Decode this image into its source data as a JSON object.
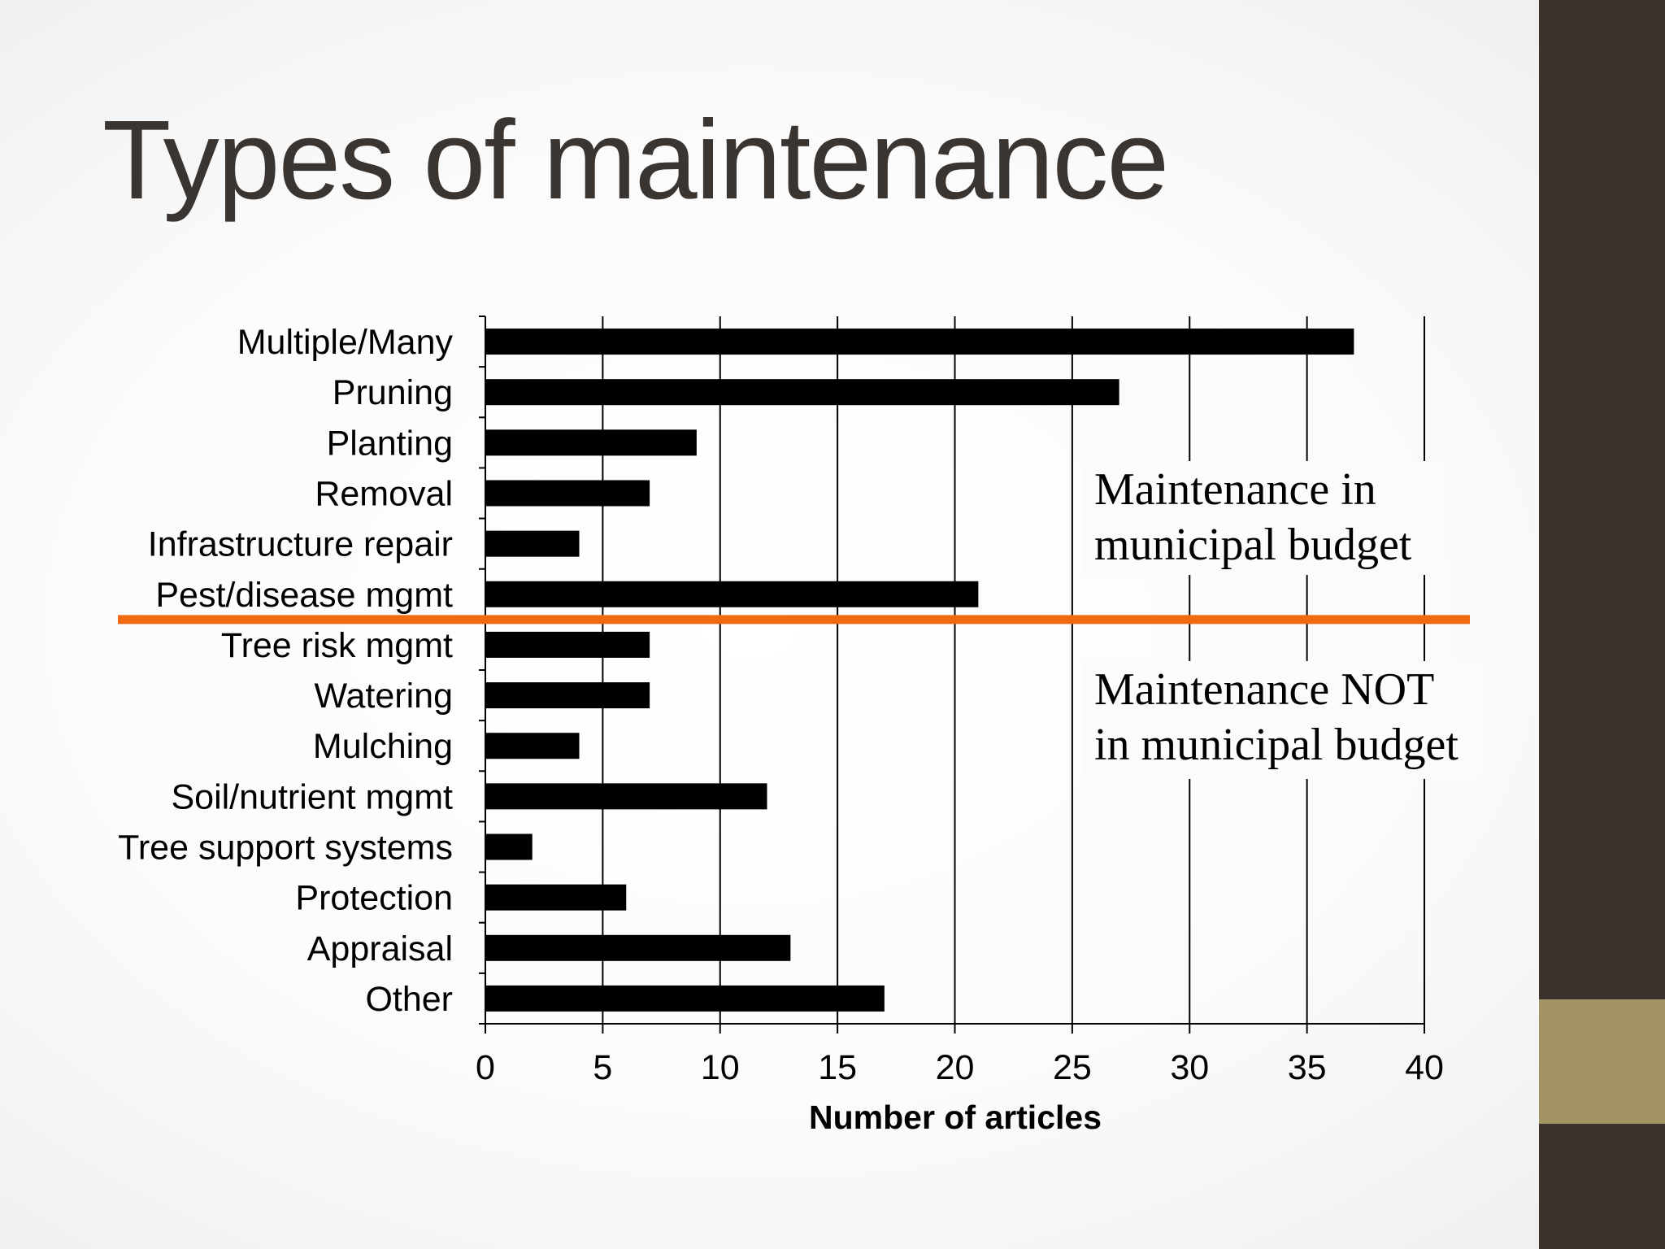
{
  "slide": {
    "title": "Types of maintenance",
    "colors": {
      "sidebar": "#3a332d",
      "sidebar_accent": "#a39464",
      "divider": "#f26a10",
      "bars": "#000000"
    }
  },
  "chart_data": {
    "type": "bar",
    "orientation": "horizontal",
    "categories": [
      "Multiple/Many",
      "Pruning",
      "Planting",
      "Removal",
      "Infrastructure repair",
      "Pest/disease mgmt",
      "Tree risk mgmt",
      "Watering",
      "Mulching",
      "Soil/nutrient mgmt",
      "Tree support systems",
      "Protection",
      "Appraisal",
      "Other"
    ],
    "values": [
      37,
      27,
      9,
      7,
      4,
      21,
      7,
      7,
      4,
      12,
      2,
      6,
      13,
      17
    ],
    "xlabel": "Number of articles",
    "ylabel": "",
    "xlim": [
      0,
      40
    ],
    "xticks": [
      0,
      5,
      10,
      15,
      20,
      25,
      30,
      35,
      40
    ],
    "grid": "vertical",
    "divider_after_category": "Pest/disease mgmt",
    "annotations": {
      "upper_line1": "Maintenance in",
      "upper_line2": "municipal budget",
      "lower_line1": "Maintenance NOT",
      "lower_line2": "in municipal budget"
    }
  }
}
